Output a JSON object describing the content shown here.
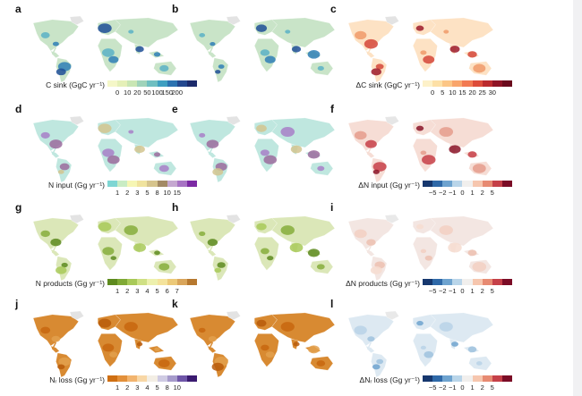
{
  "panels": [
    {
      "id": "a",
      "label": "a",
      "legend_title": "C sink (GgC yr⁻¹)",
      "ticks": [
        "0",
        "10",
        "20",
        "50",
        "100",
        "150",
        "200"
      ],
      "colors": [
        "#f5f7c8",
        "#e5f0b8",
        "#c9e6b4",
        "#9fd3ba",
        "#6fbfc1",
        "#3f9fc1",
        "#2c73b1",
        "#24488f",
        "#1c2a6b"
      ],
      "map_scheme": "blue"
    },
    {
      "id": "b",
      "label": "b",
      "legend_title": "",
      "ticks": [],
      "colors": [],
      "map_scheme": "blue"
    },
    {
      "id": "c",
      "label": "c",
      "legend_title": "ΔC sink (GgC yr⁻¹)",
      "ticks": [
        "0",
        "5",
        "10",
        "15",
        "20",
        "25",
        "30"
      ],
      "colors": [
        "#fdf1c9",
        "#fde0a6",
        "#fcc686",
        "#f9a56b",
        "#f27a52",
        "#dd4c3a",
        "#bb2a2d",
        "#8e1325",
        "#6a0a1d"
      ],
      "map_scheme": "red"
    },
    {
      "id": "d",
      "label": "d",
      "legend_title": "N input (Gg yr⁻¹)",
      "ticks": [
        "1",
        "2",
        "3",
        "5",
        "8",
        "10",
        "15"
      ],
      "colors": [
        "#7fd6d3",
        "#c9ecc4",
        "#f6f6b4",
        "#f0e39e",
        "#d6c48d",
        "#a38a66",
        "#c5a8d0",
        "#a874c4",
        "#7c2aa4"
      ],
      "map_scheme": "purple"
    },
    {
      "id": "e",
      "label": "e",
      "legend_title": "",
      "ticks": [],
      "colors": [],
      "map_scheme": "purple"
    },
    {
      "id": "f",
      "label": "f",
      "legend_title": "ΔN input (Gg yr⁻¹)",
      "ticks": [
        "−5",
        "−2",
        "−1",
        "0",
        "1",
        "2",
        "5"
      ],
      "colors": [
        "#16376e",
        "#2f69a8",
        "#6ea3cf",
        "#b9d5e9",
        "#f1efed",
        "#f6c6ae",
        "#e78a72",
        "#c54048",
        "#7b0c26"
      ],
      "map_scheme": "diverge_red"
    },
    {
      "id": "g",
      "label": "g",
      "legend_title": "N products (Gg yr⁻¹)",
      "ticks": [
        "1",
        "2",
        "3",
        "4",
        "5",
        "6",
        "7"
      ],
      "colors": [
        "#5d8a1e",
        "#7fa935",
        "#a8c958",
        "#cfe084",
        "#edf0ad",
        "#f4e39c",
        "#ecc978",
        "#d9a55a",
        "#b6782f"
      ],
      "map_scheme": "green"
    },
    {
      "id": "h",
      "label": "h",
      "legend_title": "",
      "ticks": [],
      "colors": [],
      "map_scheme": "green"
    },
    {
      "id": "i",
      "label": "i",
      "legend_title": "ΔN products (Gg yr⁻¹)",
      "ticks": [
        "−5",
        "−2",
        "−1",
        "0",
        "1",
        "2",
        "5"
      ],
      "colors": [
        "#16376e",
        "#2f69a8",
        "#6ea3cf",
        "#b9d5e9",
        "#f1efed",
        "#f6c6ae",
        "#e78a72",
        "#c54048",
        "#7b0c26"
      ],
      "map_scheme": "faint"
    },
    {
      "id": "j",
      "label": "j",
      "legend_title": "Nᵣ loss (Gg yr⁻¹)",
      "ticks": [
        "1",
        "2",
        "3",
        "4",
        "5",
        "8",
        "10"
      ],
      "colors": [
        "#cf6f12",
        "#e3903a",
        "#f2b46e",
        "#f8d7a6",
        "#f3eee4",
        "#cfcbe3",
        "#a69bcb",
        "#6f56a8",
        "#3a1a70"
      ],
      "map_scheme": "orange"
    },
    {
      "id": "k",
      "label": "k",
      "legend_title": "",
      "ticks": [],
      "colors": [],
      "map_scheme": "orange"
    },
    {
      "id": "l",
      "label": "l",
      "legend_title": "ΔNᵣ loss (Gg yr⁻¹)",
      "ticks": [
        "−5",
        "−2",
        "−1",
        "0",
        "1",
        "2",
        "5"
      ],
      "colors": [
        "#16376e",
        "#2f69a8",
        "#6ea3cf",
        "#b9d5e9",
        "#f1efed",
        "#f6c6ae",
        "#e78a72",
        "#c54048",
        "#7b0c26"
      ],
      "map_scheme": "faint_blue"
    }
  ]
}
